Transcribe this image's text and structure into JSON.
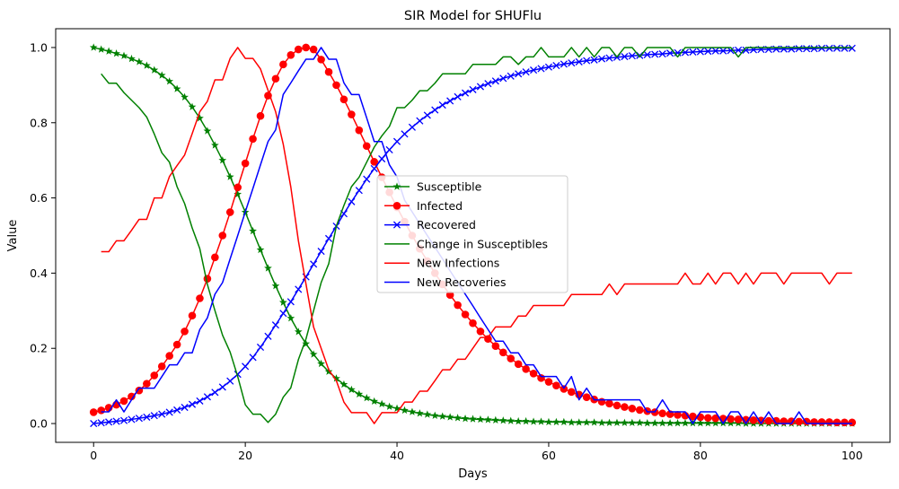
{
  "chart_data": {
    "type": "line",
    "title": "SIR Model for SHUFlu",
    "xlabel": "Days",
    "ylabel": "Value",
    "xlim": [
      -5,
      105
    ],
    "ylim": [
      -0.05,
      1.05
    ],
    "xticks": [
      0,
      20,
      40,
      60,
      80,
      100
    ],
    "yticks": [
      0.0,
      0.2,
      0.4,
      0.6,
      0.8,
      1.0
    ],
    "ytick_labels": [
      "0.0",
      "0.2",
      "0.4",
      "0.6",
      "0.8",
      "1.0"
    ],
    "legend_position": "center",
    "series": [
      {
        "name": "Susceptible",
        "color": "#008000",
        "marker": "star",
        "x": [
          0,
          1,
          2,
          3,
          4,
          5,
          6,
          7,
          8,
          9,
          10,
          11,
          12,
          13,
          14,
          15,
          16,
          17,
          18,
          19,
          20,
          21,
          22,
          23,
          24,
          25,
          26,
          27,
          28,
          29,
          30,
          31,
          32,
          33,
          34,
          35,
          36,
          37,
          38,
          39,
          40,
          41,
          42,
          43,
          44,
          45,
          46,
          47,
          48,
          49,
          50,
          51,
          52,
          53,
          54,
          55,
          56,
          57,
          58,
          59,
          60,
          61,
          62,
          63,
          64,
          65,
          66,
          67,
          68,
          69,
          70,
          71,
          72,
          73,
          74,
          75,
          76,
          77,
          78,
          79,
          80,
          81,
          82,
          83,
          84,
          85,
          86,
          87,
          88,
          89,
          90,
          91,
          92,
          93,
          94,
          95,
          96,
          97,
          98,
          99,
          100
        ],
        "values": [
          1.0,
          0.995,
          0.99,
          0.984,
          0.978,
          0.97,
          0.962,
          0.952,
          0.94,
          0.926,
          0.91,
          0.89,
          0.868,
          0.842,
          0.812,
          0.778,
          0.74,
          0.7,
          0.656,
          0.61,
          0.562,
          0.512,
          0.462,
          0.413,
          0.366,
          0.322,
          0.28,
          0.244,
          0.212,
          0.184,
          0.159,
          0.138,
          0.12,
          0.104,
          0.09,
          0.078,
          0.068,
          0.059,
          0.052,
          0.045,
          0.04,
          0.035,
          0.031,
          0.027,
          0.024,
          0.021,
          0.019,
          0.017,
          0.015,
          0.013,
          0.012,
          0.011,
          0.01,
          0.009,
          0.008,
          0.007,
          0.006,
          0.006,
          0.005,
          0.005,
          0.004,
          0.004,
          0.004,
          0.003,
          0.003,
          0.003,
          0.003,
          0.002,
          0.002,
          0.002,
          0.002,
          0.002,
          0.002,
          0.001,
          0.001,
          0.001,
          0.001,
          0.001,
          0.001,
          0.001,
          0.001,
          0.001,
          0.001,
          0.001,
          0.001,
          0.001,
          0.0,
          0.0,
          0.0,
          0.0,
          0.0,
          0.0,
          0.0,
          0.0,
          0.0,
          0.0,
          0.0,
          0.0,
          0.0,
          0.0,
          0.0
        ]
      },
      {
        "name": "Infected",
        "color": "#ff0000",
        "marker": "circle",
        "x": [
          0,
          1,
          2,
          3,
          4,
          5,
          6,
          7,
          8,
          9,
          10,
          11,
          12,
          13,
          14,
          15,
          16,
          17,
          18,
          19,
          20,
          21,
          22,
          23,
          24,
          25,
          26,
          27,
          28,
          29,
          30,
          31,
          32,
          33,
          34,
          35,
          36,
          37,
          38,
          39,
          40,
          41,
          42,
          43,
          44,
          45,
          46,
          47,
          48,
          49,
          50,
          51,
          52,
          53,
          54,
          55,
          56,
          57,
          58,
          59,
          60,
          61,
          62,
          63,
          64,
          65,
          66,
          67,
          68,
          69,
          70,
          71,
          72,
          73,
          74,
          75,
          76,
          77,
          78,
          79,
          80,
          81,
          82,
          83,
          84,
          85,
          86,
          87,
          88,
          89,
          90,
          91,
          92,
          93,
          94,
          95,
          96,
          97,
          98,
          99,
          100
        ],
        "values": [
          0.03,
          0.035,
          0.042,
          0.05,
          0.06,
          0.072,
          0.088,
          0.106,
          0.128,
          0.152,
          0.18,
          0.21,
          0.245,
          0.287,
          0.333,
          0.385,
          0.442,
          0.5,
          0.562,
          0.628,
          0.692,
          0.757,
          0.818,
          0.872,
          0.917,
          0.955,
          0.98,
          0.995,
          1.0,
          0.995,
          0.968,
          0.935,
          0.9,
          0.862,
          0.822,
          0.78,
          0.738,
          0.696,
          0.655,
          0.615,
          0.575,
          0.537,
          0.5,
          0.465,
          0.432,
          0.4,
          0.37,
          0.342,
          0.315,
          0.29,
          0.267,
          0.245,
          0.225,
          0.206,
          0.189,
          0.173,
          0.158,
          0.145,
          0.133,
          0.121,
          0.111,
          0.101,
          0.092,
          0.084,
          0.077,
          0.07,
          0.064,
          0.058,
          0.053,
          0.048,
          0.044,
          0.04,
          0.036,
          0.033,
          0.03,
          0.027,
          0.025,
          0.023,
          0.021,
          0.019,
          0.017,
          0.015,
          0.014,
          0.013,
          0.012,
          0.011,
          0.01,
          0.009,
          0.008,
          0.007,
          0.007,
          0.006,
          0.006,
          0.005,
          0.005,
          0.004,
          0.004,
          0.004,
          0.003,
          0.003,
          0.003
        ]
      },
      {
        "name": "Recovered",
        "color": "#0000ff",
        "marker": "x",
        "x": [
          0,
          1,
          2,
          3,
          4,
          5,
          6,
          7,
          8,
          9,
          10,
          11,
          12,
          13,
          14,
          15,
          16,
          17,
          18,
          19,
          20,
          21,
          22,
          23,
          24,
          25,
          26,
          27,
          28,
          29,
          30,
          31,
          32,
          33,
          34,
          35,
          36,
          37,
          38,
          39,
          40,
          41,
          42,
          43,
          44,
          45,
          46,
          47,
          48,
          49,
          50,
          51,
          52,
          53,
          54,
          55,
          56,
          57,
          58,
          59,
          60,
          61,
          62,
          63,
          64,
          65,
          66,
          67,
          68,
          69,
          70,
          71,
          72,
          73,
          74,
          75,
          76,
          77,
          78,
          79,
          80,
          81,
          82,
          83,
          84,
          85,
          86,
          87,
          88,
          89,
          90,
          91,
          92,
          93,
          94,
          95,
          96,
          97,
          98,
          99,
          100
        ],
        "values": [
          0.0,
          0.002,
          0.004,
          0.006,
          0.008,
          0.011,
          0.014,
          0.017,
          0.021,
          0.025,
          0.03,
          0.036,
          0.043,
          0.051,
          0.06,
          0.071,
          0.083,
          0.097,
          0.113,
          0.131,
          0.152,
          0.176,
          0.203,
          0.232,
          0.262,
          0.293,
          0.324,
          0.357,
          0.39,
          0.424,
          0.458,
          0.492,
          0.525,
          0.558,
          0.59,
          0.62,
          0.65,
          0.678,
          0.704,
          0.728,
          0.75,
          0.77,
          0.788,
          0.805,
          0.82,
          0.834,
          0.847,
          0.858,
          0.869,
          0.879,
          0.888,
          0.896,
          0.904,
          0.911,
          0.918,
          0.924,
          0.93,
          0.935,
          0.94,
          0.944,
          0.948,
          0.952,
          0.956,
          0.959,
          0.962,
          0.965,
          0.967,
          0.97,
          0.972,
          0.974,
          0.976,
          0.978,
          0.979,
          0.981,
          0.982,
          0.983,
          0.985,
          0.986,
          0.987,
          0.988,
          0.989,
          0.99,
          0.991,
          0.991,
          0.992,
          0.993,
          0.993,
          0.994,
          0.995,
          0.995,
          0.996,
          0.996,
          0.996,
          0.997,
          0.997,
          0.997,
          0.998,
          0.998,
          0.998,
          0.998,
          0.998
        ]
      },
      {
        "name": "Change in Susceptibles",
        "color": "#008000",
        "marker": "none",
        "x": [
          1,
          2,
          3,
          4,
          5,
          6,
          7,
          8,
          9,
          10,
          11,
          12,
          13,
          14,
          15,
          16,
          17,
          18,
          19,
          20,
          21,
          22,
          23,
          24,
          25,
          26,
          27,
          28,
          29,
          30,
          31,
          32,
          33,
          34,
          35,
          36,
          37,
          38,
          39,
          40,
          41,
          42,
          43,
          44,
          45,
          46,
          47,
          48,
          49,
          50,
          51,
          52,
          53,
          54,
          55,
          56,
          57,
          58,
          59,
          60,
          61,
          62,
          63,
          64,
          65,
          66,
          67,
          68,
          69,
          70,
          71,
          72,
          73,
          74,
          75,
          76,
          77,
          78,
          79,
          80,
          81,
          82,
          83,
          84,
          85,
          86,
          87,
          88,
          89,
          90,
          91,
          92,
          93,
          94,
          95,
          96,
          97,
          98,
          99,
          100
        ],
        "values": [
          0.93,
          0.905,
          0.905,
          0.88,
          0.86,
          0.84,
          0.815,
          0.77,
          0.72,
          0.695,
          0.63,
          0.585,
          0.52,
          0.465,
          0.37,
          0.3,
          0.235,
          0.19,
          0.125,
          0.05,
          0.025,
          0.025,
          0.003,
          0.025,
          0.07,
          0.095,
          0.17,
          0.225,
          0.3,
          0.375,
          0.425,
          0.525,
          0.58,
          0.63,
          0.655,
          0.695,
          0.735,
          0.765,
          0.79,
          0.84,
          0.84,
          0.86,
          0.885,
          0.885,
          0.905,
          0.93,
          0.93,
          0.93,
          0.93,
          0.955,
          0.955,
          0.955,
          0.955,
          0.975,
          0.975,
          0.955,
          0.975,
          0.975,
          1.0,
          0.975,
          0.975,
          0.975,
          1.0,
          0.975,
          1.0,
          0.975,
          1.0,
          1.0,
          0.975,
          1.0,
          1.0,
          0.975,
          1.0,
          1.0,
          1.0,
          1.0,
          0.975,
          1.0,
          1.0,
          1.0,
          1.0,
          1.0,
          1.0,
          1.0,
          0.975,
          1.0,
          1.0,
          1.0,
          1.0,
          1.0,
          1.0,
          1.0,
          1.0,
          1.0,
          1.0,
          1.0,
          1.0,
          1.0,
          1.0,
          1.0
        ]
      },
      {
        "name": "New Infections",
        "color": "#ff0000",
        "marker": "none",
        "x": [
          1,
          2,
          3,
          4,
          5,
          6,
          7,
          8,
          9,
          10,
          11,
          12,
          13,
          14,
          15,
          16,
          17,
          18,
          19,
          20,
          21,
          22,
          23,
          24,
          25,
          26,
          27,
          28,
          29,
          30,
          31,
          32,
          33,
          34,
          35,
          36,
          37,
          38,
          39,
          40,
          41,
          42,
          43,
          44,
          45,
          46,
          47,
          48,
          49,
          50,
          51,
          52,
          53,
          54,
          55,
          56,
          57,
          58,
          59,
          60,
          61,
          62,
          63,
          64,
          65,
          66,
          67,
          68,
          69,
          70,
          71,
          72,
          73,
          74,
          75,
          76,
          77,
          78,
          79,
          80,
          81,
          82,
          83,
          84,
          85,
          86,
          87,
          88,
          89,
          90,
          91,
          92,
          93,
          94,
          95,
          96,
          97,
          98,
          99,
          100
        ],
        "values": [
          0.457,
          0.457,
          0.486,
          0.486,
          0.514,
          0.543,
          0.543,
          0.6,
          0.6,
          0.657,
          0.686,
          0.714,
          0.771,
          0.829,
          0.857,
          0.914,
          0.914,
          0.971,
          1.0,
          0.971,
          0.971,
          0.943,
          0.886,
          0.829,
          0.743,
          0.629,
          0.486,
          0.371,
          0.257,
          0.2,
          0.143,
          0.114,
          0.057,
          0.029,
          0.029,
          0.029,
          0.0,
          0.029,
          0.029,
          0.029,
          0.057,
          0.057,
          0.086,
          0.086,
          0.114,
          0.143,
          0.143,
          0.171,
          0.171,
          0.2,
          0.229,
          0.229,
          0.257,
          0.257,
          0.257,
          0.286,
          0.286,
          0.314,
          0.314,
          0.314,
          0.314,
          0.314,
          0.343,
          0.343,
          0.343,
          0.343,
          0.343,
          0.371,
          0.343,
          0.371,
          0.371,
          0.371,
          0.371,
          0.371,
          0.371,
          0.371,
          0.371,
          0.4,
          0.371,
          0.371,
          0.4,
          0.371,
          0.4,
          0.4,
          0.371,
          0.4,
          0.371,
          0.4,
          0.4,
          0.4,
          0.371,
          0.4,
          0.4,
          0.4,
          0.4,
          0.4,
          0.371,
          0.4,
          0.4,
          0.4
        ]
      },
      {
        "name": "New Recoveries",
        "color": "#0000ff",
        "marker": "none",
        "x": [
          1,
          2,
          3,
          4,
          5,
          6,
          7,
          8,
          9,
          10,
          11,
          12,
          13,
          14,
          15,
          16,
          17,
          18,
          19,
          20,
          21,
          22,
          23,
          24,
          25,
          26,
          27,
          28,
          29,
          30,
          31,
          32,
          33,
          34,
          35,
          36,
          37,
          38,
          39,
          40,
          41,
          42,
          43,
          44,
          45,
          46,
          47,
          48,
          49,
          50,
          51,
          52,
          53,
          54,
          55,
          56,
          57,
          58,
          59,
          60,
          61,
          62,
          63,
          64,
          65,
          66,
          67,
          68,
          69,
          70,
          71,
          72,
          73,
          74,
          75,
          76,
          77,
          78,
          79,
          80,
          81,
          82,
          83,
          84,
          85,
          86,
          87,
          88,
          89,
          90,
          91,
          92,
          93,
          94,
          95,
          96,
          97,
          98,
          99,
          100
        ],
        "values": [
          0.031,
          0.031,
          0.063,
          0.031,
          0.063,
          0.094,
          0.094,
          0.094,
          0.125,
          0.156,
          0.156,
          0.188,
          0.188,
          0.25,
          0.281,
          0.344,
          0.375,
          0.438,
          0.5,
          0.563,
          0.625,
          0.688,
          0.75,
          0.781,
          0.875,
          0.906,
          0.938,
          0.969,
          0.969,
          1.0,
          0.969,
          0.969,
          0.906,
          0.875,
          0.875,
          0.813,
          0.75,
          0.75,
          0.688,
          0.656,
          0.594,
          0.563,
          0.531,
          0.5,
          0.469,
          0.438,
          0.406,
          0.375,
          0.344,
          0.313,
          0.281,
          0.25,
          0.219,
          0.219,
          0.188,
          0.188,
          0.156,
          0.156,
          0.125,
          0.125,
          0.125,
          0.094,
          0.125,
          0.063,
          0.094,
          0.063,
          0.063,
          0.063,
          0.063,
          0.063,
          0.063,
          0.063,
          0.031,
          0.031,
          0.063,
          0.031,
          0.031,
          0.031,
          0.0,
          0.031,
          0.031,
          0.031,
          0.0,
          0.031,
          0.031,
          0.0,
          0.031,
          0.0,
          0.031,
          0.0,
          0.0,
          0.0,
          0.031,
          0.0,
          0.0,
          0.0,
          0.0,
          0.0,
          0.0,
          0.0
        ]
      }
    ]
  }
}
